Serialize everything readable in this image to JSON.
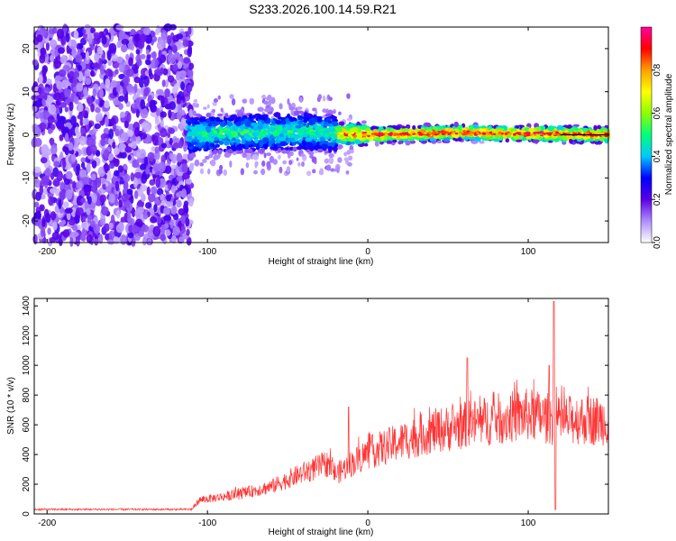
{
  "title": "S233.2026.100.14.59.R21",
  "chart_data": [
    {
      "type": "heatmap",
      "xlabel": "Height of straight line (km)",
      "ylabel": "Frequency (Hz)",
      "xlim": [
        -208,
        150
      ],
      "ylim": [
        -25,
        25
      ],
      "xticks": [
        -200,
        -100,
        0,
        100
      ],
      "yticks": [
        -20,
        -10,
        0,
        10,
        20
      ],
      "colorbar": {
        "label": "Normalized spectral amplitude",
        "range": [
          0,
          1
        ],
        "ticks": [
          0.0,
          0.2,
          0.4,
          0.6,
          0.8
        ],
        "colors": [
          "#ffffff",
          "#b08cff",
          "#5a00e6",
          "#0000ff",
          "#00c8ff",
          "#00ff7a",
          "#8cff00",
          "#ffff00",
          "#ffa000",
          "#ff0000",
          "#ff00a0"
        ]
      },
      "ridge": {
        "description_value_points": [
          {
            "x": -110,
            "y": 0.0
          },
          {
            "x": -80,
            "y": 0.5
          },
          {
            "x": -40,
            "y": 0.8
          },
          {
            "x": -20,
            "y": 0.3
          },
          {
            "x": 0,
            "y": 0.0
          },
          {
            "x": 40,
            "y": 0.3
          },
          {
            "x": 60,
            "y": 0.6
          },
          {
            "x": 80,
            "y": 0.3
          },
          {
            "x": 110,
            "y": 0.3
          },
          {
            "x": 140,
            "y": 0.0
          }
        ]
      }
    },
    {
      "type": "line",
      "xlabel": "Height of straight line (km)",
      "ylabel": "SNR (10 * v/v)",
      "xlim": [
        -208,
        150
      ],
      "ylim": [
        0,
        1450
      ],
      "xticks": [
        -200,
        -100,
        0,
        100
      ],
      "yticks": [
        0,
        200,
        400,
        600,
        800,
        1000,
        1200,
        1400
      ],
      "color": "#ff3333",
      "envelope": [
        {
          "x": -208,
          "y": 30
        },
        {
          "x": -110,
          "y": 30
        },
        {
          "x": -105,
          "y": 90
        },
        {
          "x": -80,
          "y": 130
        },
        {
          "x": -60,
          "y": 180
        },
        {
          "x": -40,
          "y": 270
        },
        {
          "x": -25,
          "y": 330
        },
        {
          "x": -20,
          "y": 260
        },
        {
          "x": -10,
          "y": 330
        },
        {
          "x": 0,
          "y": 400
        },
        {
          "x": 20,
          "y": 470
        },
        {
          "x": 40,
          "y": 540
        },
        {
          "x": 60,
          "y": 580
        },
        {
          "x": 80,
          "y": 620
        },
        {
          "x": 100,
          "y": 650
        },
        {
          "x": 110,
          "y": 630
        },
        {
          "x": 114,
          "y": 620
        },
        {
          "x": 120,
          "y": 600
        },
        {
          "x": 130,
          "y": 620
        },
        {
          "x": 150,
          "y": 610
        }
      ],
      "peaks": [
        {
          "x": -12,
          "y": 720
        },
        {
          "x": 62,
          "y": 1050
        },
        {
          "x": 113,
          "y": 1000
        },
        {
          "x": 116,
          "y": 1430
        },
        {
          "x": 117,
          "y": 30
        }
      ]
    }
  ]
}
